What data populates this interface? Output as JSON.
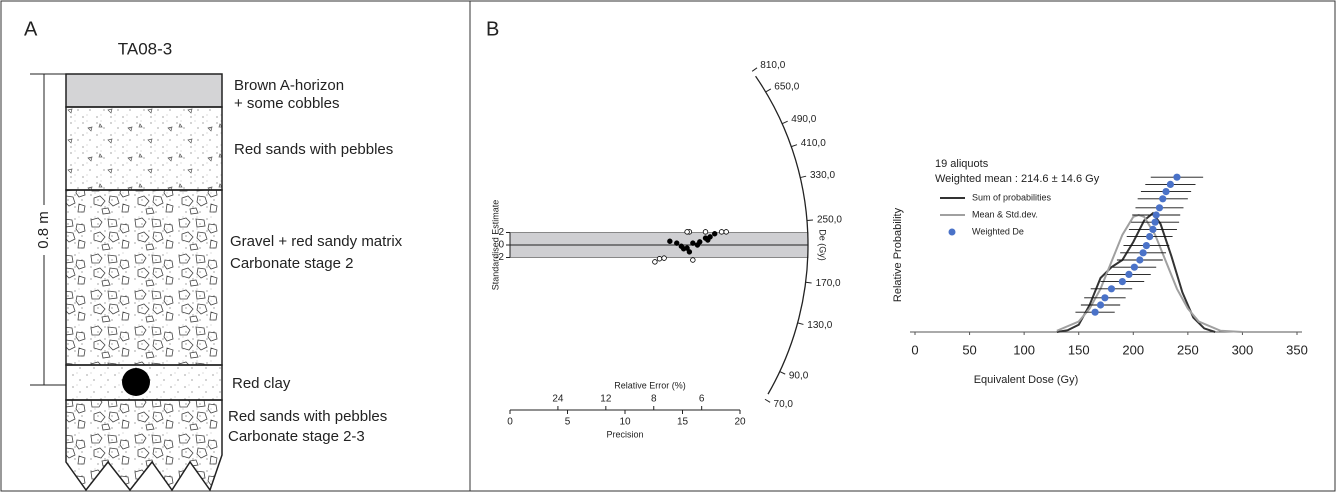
{
  "panel_a": {
    "label": "A",
    "title": "TA08-3",
    "scale": "0.8 m",
    "layers": [
      [
        "Brown A-horizon",
        "+ some cobbles"
      ],
      [
        "Red sands with pebbles"
      ],
      [
        "Gravel + red sandy matrix",
        "Carbonate stage 2"
      ],
      [
        "Red clay"
      ],
      [
        "Red sands with pebbles",
        "Carbonate stage 2-3"
      ]
    ]
  },
  "panel_b_label": "B",
  "chart_data": [
    {
      "type": "radial",
      "ylabel": "Standardised Estimate",
      "xlabel": "Precision",
      "x2label": "Relative Error (%)",
      "zlabel": "De (Gy)",
      "xlim": [
        0,
        20
      ],
      "xticks": [
        0,
        5,
        10,
        15,
        20
      ],
      "x2ticks": [
        24,
        12,
        8,
        6
      ],
      "ylim": [
        -2,
        2
      ],
      "yticks": [
        2,
        0,
        -2
      ],
      "zcentral": 214.6,
      "zticks": [
        {
          "value": 810,
          "label": "810,0"
        },
        {
          "value": 650,
          "label": "650,0"
        },
        {
          "value": 490,
          "label": "490,0"
        },
        {
          "value": 410,
          "label": "410,0"
        },
        {
          "value": 330,
          "label": "330,0"
        },
        {
          "value": 250,
          "label": "250,0"
        },
        {
          "value": 170,
          "label": "170,0"
        },
        {
          "value": 130,
          "label": "130,0"
        },
        {
          "value": 90,
          "label": "90,0"
        },
        {
          "value": 70,
          "label": "70,0"
        }
      ],
      "series": [
        {
          "color": "#000000",
          "filled": true,
          "x": [
            13.9,
            14.5,
            14.9,
            15.1,
            15.4,
            15.6,
            15.9,
            16.3,
            16.5,
            17.0,
            17.2,
            17.4,
            17.8
          ],
          "values": [
            0.6,
            0.3,
            -0.2,
            -0.6,
            -0.5,
            -1.1,
            0.3,
            0,
            0.5,
            1.1,
            0.8,
            1.3,
            1.8
          ]
        },
        {
          "color": "#000000",
          "filled": false,
          "x": [
            12.6,
            13.0,
            13.4,
            15.6,
            15.9,
            17.0,
            18.4,
            18.8,
            15.4
          ],
          "values": [
            -2.7,
            -2.2,
            -2.1,
            2.1,
            -2.4,
            2.1,
            2.1,
            2.1,
            2.1
          ]
        }
      ]
    },
    {
      "type": "density",
      "xlabel": "Equivalent Dose (Gy)",
      "ylabel": "Relative  Probability",
      "annotations": [
        "19 aliquots",
        "Weighted mean : 214.6 ± 14.6 Gy"
      ],
      "xlim": [
        0,
        350
      ],
      "xticks": [
        0,
        50,
        100,
        150,
        200,
        250,
        300,
        350
      ],
      "ylim": [
        0,
        1
      ],
      "series": [
        {
          "name": "Sum of probabilities",
          "color": "#333333",
          "x": [
            130,
            140,
            150,
            160,
            170,
            180,
            190,
            200,
            210,
            218,
            225,
            235,
            245,
            255,
            265,
            275
          ],
          "values": [
            0,
            0.01,
            0.04,
            0.15,
            0.3,
            0.36,
            0.4,
            0.5,
            0.62,
            0.66,
            0.6,
            0.42,
            0.22,
            0.08,
            0.02,
            0
          ]
        },
        {
          "name": "Mean & Std.dev.",
          "color": "#a0a0a0",
          "x": [
            130,
            150,
            160,
            170,
            180,
            190,
            200,
            205,
            210,
            220,
            230,
            240,
            250,
            260,
            280,
            300
          ],
          "values": [
            0.007,
            0.058,
            0.13,
            0.24,
            0.39,
            0.54,
            0.64,
            0.65,
            0.64,
            0.54,
            0.39,
            0.24,
            0.13,
            0.058,
            0.007,
            0
          ]
        },
        {
          "name": "Weighted De",
          "color": "#4a72c8",
          "type": "scatter",
          "x": [
            165,
            170,
            174,
            180,
            190,
            196,
            201,
            206,
            209,
            212,
            215,
            218,
            220,
            221,
            224,
            227,
            230,
            234,
            240
          ],
          "values": [
            0.11,
            0.15,
            0.19,
            0.24,
            0.28,
            0.32,
            0.36,
            0.4,
            0.44,
            0.48,
            0.53,
            0.57,
            0.61,
            0.65,
            0.69,
            0.74,
            0.78,
            0.82,
            0.86
          ],
          "errors": [
            18,
            18,
            19,
            19,
            20,
            20,
            20,
            21,
            21,
            21,
            21,
            22,
            22,
            22,
            22,
            23,
            23,
            23,
            24
          ]
        }
      ]
    }
  ]
}
